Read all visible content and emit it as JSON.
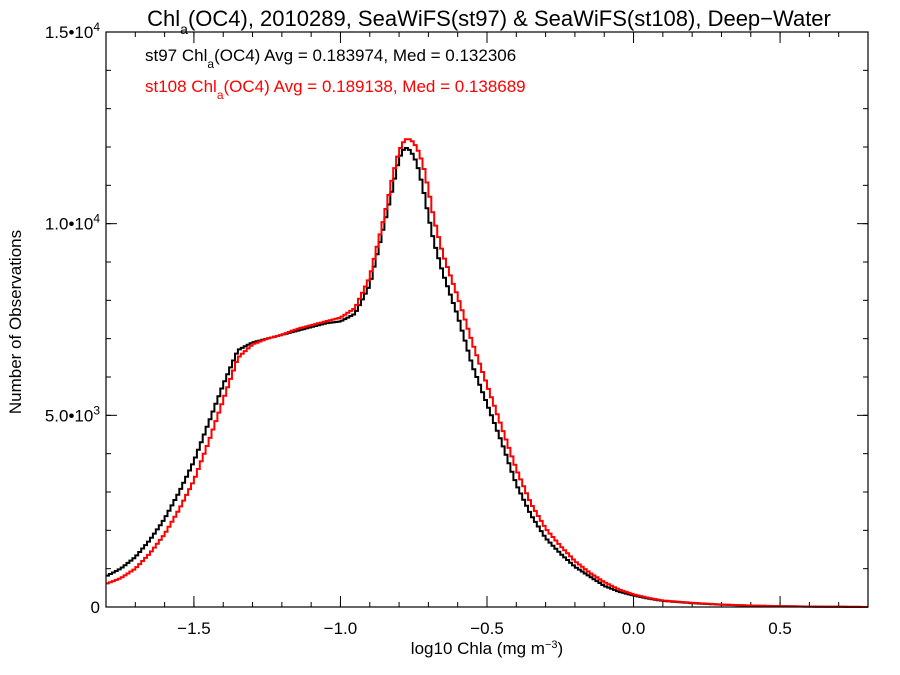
{
  "chart_data": {
    "type": "line",
    "title": {
      "pre": "Chl",
      "sub": "a",
      "post": "(OC4), 2010289, SeaWiFS(st97) & SeaWiFS(st108), Deep−Water"
    },
    "xlabel": {
      "pre": "log10 Chla (mg m",
      "sup": "−3",
      "post": ")"
    },
    "ylabel": "Number of Observations",
    "xlim": [
      -1.8,
      0.8
    ],
    "ylim": [
      0,
      15000
    ],
    "x_ticks": [
      {
        "value": -1.5,
        "label": "−1.5"
      },
      {
        "value": -1.0,
        "label": "−1.0"
      },
      {
        "value": -0.5,
        "label": "−0.5"
      },
      {
        "value": 0.0,
        "label": "0.0"
      },
      {
        "value": 0.5,
        "label": "0.5"
      }
    ],
    "y_ticks": [
      {
        "value": 0,
        "base": "0",
        "exp": ""
      },
      {
        "value": 5000,
        "base": "5.0•10",
        "exp": "3"
      },
      {
        "value": 10000,
        "base": "1.0•10",
        "exp": "4"
      },
      {
        "value": 15000,
        "base": "1.5•10",
        "exp": "4"
      }
    ],
    "x_minor_step": 0.1,
    "y_minor_step": 1000,
    "grid": false,
    "annotations": [
      {
        "pre": "st97 Chl",
        "sub": "a",
        "post": "(OC4) Avg = 0.183974, Med = 0.132306",
        "color": "#000000"
      },
      {
        "pre": "st108 Chl",
        "sub": "a",
        "post": "(OC4) Avg = 0.189138, Med = 0.138689",
        "color": "#ff0000"
      }
    ],
    "series": [
      {
        "color": "#000000",
        "x": [
          -1.8,
          -1.75,
          -1.7,
          -1.65,
          -1.6,
          -1.55,
          -1.5,
          -1.45,
          -1.4,
          -1.35,
          -1.3,
          -1.25,
          -1.2,
          -1.15,
          -1.1,
          -1.05,
          -1.0,
          -0.95,
          -0.9,
          -0.85,
          -0.82,
          -0.8,
          -0.78,
          -0.76,
          -0.74,
          -0.72,
          -0.7,
          -0.68,
          -0.65,
          -0.6,
          -0.55,
          -0.5,
          -0.45,
          -0.4,
          -0.35,
          -0.3,
          -0.25,
          -0.2,
          -0.15,
          -0.1,
          -0.05,
          0.0,
          0.05,
          0.1,
          0.2,
          0.3,
          0.4,
          0.5,
          0.6,
          0.7,
          0.8
        ],
        "y": [
          800,
          1000,
          1300,
          1750,
          2300,
          3000,
          3800,
          4800,
          5800,
          6700,
          6900,
          7000,
          7100,
          7200,
          7300,
          7400,
          7450,
          7650,
          8400,
          10000,
          11000,
          11700,
          12000,
          11900,
          11600,
          11000,
          10200,
          9500,
          8700,
          7600,
          6300,
          5300,
          4300,
          3200,
          2400,
          1800,
          1400,
          1050,
          800,
          550,
          400,
          300,
          220,
          160,
          100,
          60,
          35,
          20,
          10,
          5,
          0
        ]
      },
      {
        "color": "#ff0000",
        "x": [
          -1.8,
          -1.75,
          -1.7,
          -1.65,
          -1.6,
          -1.55,
          -1.5,
          -1.45,
          -1.4,
          -1.35,
          -1.3,
          -1.25,
          -1.2,
          -1.15,
          -1.1,
          -1.05,
          -1.0,
          -0.95,
          -0.9,
          -0.85,
          -0.82,
          -0.8,
          -0.78,
          -0.76,
          -0.74,
          -0.72,
          -0.7,
          -0.68,
          -0.65,
          -0.6,
          -0.55,
          -0.5,
          -0.45,
          -0.4,
          -0.35,
          -0.3,
          -0.25,
          -0.2,
          -0.15,
          -0.1,
          -0.05,
          0.0,
          0.05,
          0.1,
          0.2,
          0.3,
          0.4,
          0.5,
          0.6,
          0.7,
          0.8
        ],
        "y": [
          600,
          750,
          1000,
          1400,
          1900,
          2550,
          3300,
          4300,
          5400,
          6500,
          6850,
          7000,
          7100,
          7250,
          7350,
          7450,
          7550,
          7800,
          8600,
          10200,
          11300,
          11900,
          12200,
          12200,
          12000,
          11600,
          10900,
          10100,
          9200,
          8100,
          6900,
          5800,
          4700,
          3600,
          2700,
          2050,
          1600,
          1200,
          900,
          650,
          460,
          330,
          240,
          170,
          110,
          65,
          38,
          22,
          12,
          6,
          0
        ]
      }
    ]
  }
}
